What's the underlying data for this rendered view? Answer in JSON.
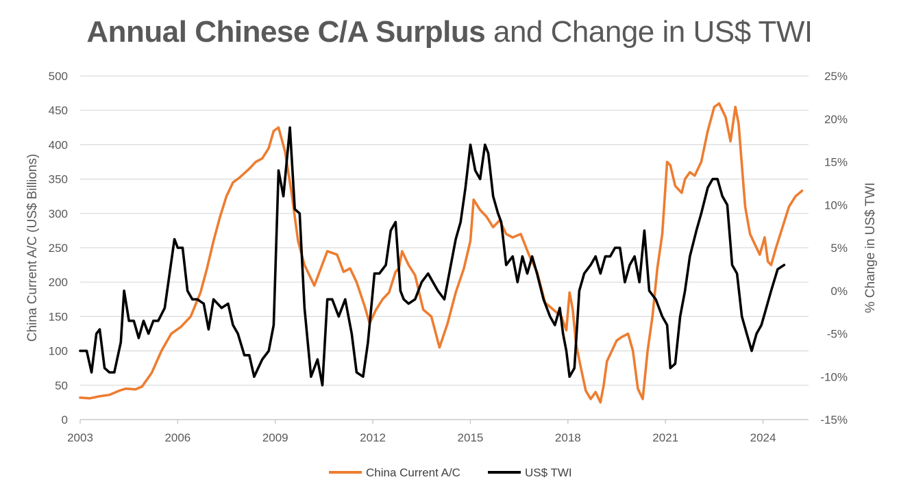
{
  "chart_data": {
    "type": "line",
    "title_bold": "Annual Chinese C/A Surplus",
    "title_rest": " and Change in US$ TWI",
    "ylabel_left": "China Current A/C (US$ Billions)",
    "ylabel_right": "% Change in US$ TWI",
    "xlim": [
      2003,
      2025.4
    ],
    "ylim_left": [
      0,
      500
    ],
    "ylim_right": [
      -15,
      25
    ],
    "x_ticks": [
      2003,
      2006,
      2009,
      2012,
      2015,
      2018,
      2021,
      2024
    ],
    "x_tick_labels": [
      "2003",
      "2006",
      "2009",
      "2012",
      "2015",
      "2018",
      "2021",
      "2024"
    ],
    "y_left_ticks": [
      0,
      50,
      100,
      150,
      200,
      250,
      300,
      350,
      400,
      450,
      500
    ],
    "y_left_tick_labels": [
      "0",
      "50",
      "100",
      "150",
      "200",
      "250",
      "300",
      "350",
      "400",
      "450",
      "500"
    ],
    "y_right_ticks": [
      -15,
      -10,
      -5,
      0,
      5,
      10,
      15,
      20,
      25
    ],
    "y_right_tick_labels": [
      "-15%",
      "-10%",
      "-5%",
      "0%",
      "5%",
      "10%",
      "15%",
      "20%",
      "25%"
    ],
    "grid": true,
    "legend_position": "bottom-center",
    "series": [
      {
        "name": "China Current A/C",
        "axis": "left",
        "color": "#ED7D31",
        "x": [
          2003,
          2003.3,
          2003.6,
          2003.9,
          2004.2,
          2004.4,
          2004.7,
          2004.9,
          2005.2,
          2005.5,
          2005.8,
          2006.1,
          2006.4,
          2006.7,
          2006.9,
          2007.1,
          2007.3,
          2007.5,
          2007.7,
          2007.9,
          2008.2,
          2008.4,
          2008.6,
          2008.8,
          2008.95,
          2009.1,
          2009.3,
          2009.5,
          2009.7,
          2009.9,
          2010.2,
          2010.4,
          2010.6,
          2010.9,
          2011.1,
          2011.3,
          2011.5,
          2011.75,
          2011.9,
          2012.1,
          2012.3,
          2012.5,
          2012.7,
          2012.8,
          2012.9,
          2013.1,
          2013.3,
          2013.55,
          2013.8,
          2014.05,
          2014.3,
          2014.55,
          2014.8,
          2015,
          2015.1,
          2015.3,
          2015.5,
          2015.7,
          2015.9,
          2016.1,
          2016.3,
          2016.55,
          2016.8,
          2017.05,
          2017.3,
          2017.55,
          2017.8,
          2017.95,
          2018.05,
          2018.15,
          2018.25,
          2018.4,
          2018.55,
          2018.7,
          2018.85,
          2019,
          2019.1,
          2019.2,
          2019.35,
          2019.5,
          2019.65,
          2019.85,
          2020,
          2020.15,
          2020.3,
          2020.45,
          2020.6,
          2020.75,
          2020.9,
          2021.05,
          2021.15,
          2021.3,
          2021.5,
          2021.6,
          2021.75,
          2021.9,
          2022.1,
          2022.3,
          2022.5,
          2022.65,
          2022.85,
          2023,
          2023.15,
          2023.25,
          2023.35,
          2023.45,
          2023.6,
          2023.75,
          2023.9,
          2024.05,
          2024.15,
          2024.25,
          2024.4,
          2024.6,
          2024.8,
          2025,
          2025.2
        ],
        "values": [
          32,
          31,
          34,
          36,
          42,
          45,
          44,
          48,
          68,
          100,
          125,
          135,
          150,
          185,
          220,
          260,
          295,
          325,
          345,
          352,
          365,
          375,
          380,
          395,
          420,
          425,
          390,
          330,
          260,
          225,
          195,
          220,
          245,
          240,
          215,
          220,
          200,
          165,
          140,
          160,
          175,
          185,
          215,
          220,
          245,
          225,
          210,
          160,
          150,
          105,
          140,
          185,
          220,
          260,
          320,
          305,
          295,
          280,
          290,
          270,
          265,
          270,
          240,
          215,
          170,
          160,
          150,
          130,
          185,
          160,
          110,
          75,
          42,
          30,
          40,
          25,
          50,
          85,
          100,
          115,
          120,
          125,
          100,
          45,
          30,
          100,
          150,
          220,
          270,
          375,
          370,
          340,
          330,
          350,
          360,
          355,
          375,
          420,
          455,
          460,
          440,
          405,
          455,
          430,
          370,
          310,
          270,
          255,
          240,
          265,
          230,
          225,
          250,
          280,
          310,
          325,
          333
        ]
      },
      {
        "name": "US$ TWI",
        "axis": "right",
        "color": "#000000",
        "x": [
          2003,
          2003.2,
          2003.35,
          2003.5,
          2003.6,
          2003.75,
          2003.9,
          2004.05,
          2004.25,
          2004.35,
          2004.5,
          2004.65,
          2004.8,
          2004.95,
          2005.1,
          2005.25,
          2005.4,
          2005.6,
          2005.75,
          2005.9,
          2006,
          2006.15,
          2006.3,
          2006.45,
          2006.6,
          2006.8,
          2006.95,
          2007.1,
          2007.35,
          2007.55,
          2007.7,
          2007.85,
          2008.05,
          2008.2,
          2008.35,
          2008.6,
          2008.8,
          2008.95,
          2009.1,
          2009.25,
          2009.45,
          2009.6,
          2009.75,
          2009.9,
          2010.1,
          2010.3,
          2010.45,
          2010.6,
          2010.75,
          2010.95,
          2011.15,
          2011.35,
          2011.5,
          2011.7,
          2011.85,
          2012.05,
          2012.2,
          2012.4,
          2012.55,
          2012.7,
          2012.85,
          2012.95,
          2013.1,
          2013.3,
          2013.5,
          2013.7,
          2013.85,
          2014,
          2014.2,
          2014.35,
          2014.55,
          2014.7,
          2014.85,
          2015,
          2015.15,
          2015.3,
          2015.45,
          2015.55,
          2015.7,
          2015.85,
          2015.95,
          2016.1,
          2016.3,
          2016.45,
          2016.6,
          2016.75,
          2016.9,
          2017.05,
          2017.25,
          2017.45,
          2017.6,
          2017.75,
          2017.85,
          2017.95,
          2018.05,
          2018.2,
          2018.35,
          2018.5,
          2018.7,
          2018.85,
          2019,
          2019.15,
          2019.3,
          2019.45,
          2019.6,
          2019.75,
          2019.9,
          2020.05,
          2020.2,
          2020.35,
          2020.5,
          2020.7,
          2020.9,
          2021.05,
          2021.15,
          2021.3,
          2021.45,
          2021.6,
          2021.75,
          2021.95,
          2022.1,
          2022.3,
          2022.45,
          2022.6,
          2022.75,
          2022.9,
          2023.05,
          2023.2,
          2023.35,
          2023.5,
          2023.65,
          2023.8,
          2023.95,
          2024.1,
          2024.25,
          2024.45,
          2024.65
        ],
        "values": [
          -7,
          -7,
          -9.5,
          -5,
          -4.5,
          -9,
          -9.5,
          -9.5,
          -6,
          0,
          -3.5,
          -3.5,
          -5.5,
          -3.5,
          -5,
          -3.5,
          -3.5,
          -2,
          2,
          6,
          5,
          5,
          0,
          -1,
          -1,
          -1.5,
          -4.5,
          -1,
          -2,
          -1.5,
          -4,
          -5,
          -7.5,
          -7.5,
          -10,
          -8,
          -7,
          -4,
          14,
          11,
          19,
          9.5,
          9,
          -2,
          -10,
          -8,
          -11,
          -1,
          -1,
          -3,
          -1,
          -5,
          -9.5,
          -10,
          -6,
          2,
          2,
          3,
          7,
          8,
          0,
          -1,
          -1.5,
          -1,
          1,
          2,
          1,
          0,
          -1,
          2,
          6,
          8,
          12,
          17,
          14,
          13,
          17,
          16,
          11,
          9,
          8,
          3,
          4,
          1,
          4,
          2,
          4,
          2,
          -1,
          -3,
          -4,
          -2,
          -5,
          -7,
          -10,
          -9,
          0,
          2,
          3,
          4,
          2,
          4,
          4,
          5,
          5,
          1,
          3,
          4,
          1,
          7,
          0,
          -1,
          -3,
          -4,
          -9,
          -8.5,
          -3,
          0,
          4,
          7,
          9,
          12,
          13,
          13,
          11,
          10,
          3,
          2,
          -3,
          -5,
          -7,
          -5,
          -4,
          -2,
          0,
          2.5,
          3
        ]
      }
    ]
  }
}
